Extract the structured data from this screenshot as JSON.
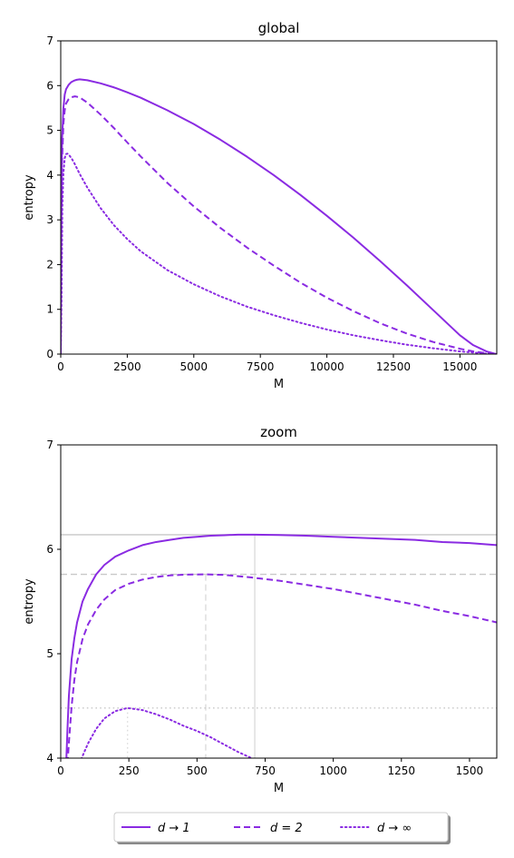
{
  "chart_data": [
    {
      "type": "line",
      "title": "global",
      "xlabel": "M",
      "ylabel": "entropy",
      "xlim": [
        0,
        16384
      ],
      "ylim": [
        0,
        7
      ],
      "xticks": [
        0,
        2500,
        5000,
        7500,
        10000,
        12500,
        15000
      ],
      "xtick_labels": [
        "0",
        "2500",
        "5000",
        "7500",
        "10000",
        "12500",
        "15000"
      ],
      "yticks": [
        0,
        1,
        2,
        3,
        4,
        5,
        6,
        7
      ],
      "ytick_labels": [
        "0",
        "1",
        "2",
        "3",
        "4",
        "5",
        "6",
        "7"
      ],
      "grid": false,
      "series": [
        {
          "name": "d → 1",
          "style": "solid",
          "color": "#8a2be2",
          "x": [
            0,
            20,
            50,
            100,
            150,
            200,
            300,
            400,
            500,
            600,
            712,
            1000,
            1500,
            2000,
            2500,
            3000,
            4000,
            5000,
            6000,
            7000,
            8000,
            9000,
            10000,
            11000,
            12000,
            13000,
            14000,
            15000,
            15500,
            16000,
            16300,
            16384
          ],
          "y": [
            0,
            3.2,
            4.8,
            5.5,
            5.8,
            5.92,
            6.02,
            6.08,
            6.11,
            6.13,
            6.14,
            6.12,
            6.05,
            5.96,
            5.85,
            5.73,
            5.45,
            5.14,
            4.79,
            4.41,
            4.0,
            3.56,
            3.09,
            2.6,
            2.08,
            1.54,
            0.98,
            0.42,
            0.2,
            0.06,
            0.01,
            0
          ]
        },
        {
          "name": "d = 2",
          "style": "dashed",
          "color": "#8a2be2",
          "x": [
            0,
            20,
            50,
            100,
            150,
            200,
            300,
            400,
            532,
            700,
            1000,
            1500,
            2000,
            2500,
            3000,
            4000,
            5000,
            6000,
            7000,
            8000,
            9000,
            10000,
            11000,
            12000,
            13000,
            14000,
            15000,
            15500,
            16000,
            16384
          ],
          "y": [
            0,
            2.8,
            4.3,
            5.15,
            5.45,
            5.6,
            5.7,
            5.74,
            5.76,
            5.74,
            5.62,
            5.35,
            5.05,
            4.73,
            4.42,
            3.83,
            3.3,
            2.82,
            2.38,
            1.98,
            1.6,
            1.26,
            0.96,
            0.69,
            0.46,
            0.27,
            0.12,
            0.06,
            0.02,
            0
          ]
        },
        {
          "name": "d → ∞",
          "style": "dotted",
          "color": "#8a2be2",
          "x": [
            0,
            30,
            60,
            100,
            150,
            200,
            250,
            300,
            400,
            500,
            700,
            1000,
            1500,
            2000,
            2500,
            3000,
            4000,
            5000,
            6000,
            7000,
            8000,
            9000,
            10000,
            11000,
            12000,
            13000,
            14000,
            15000,
            16000,
            16384
          ],
          "y": [
            0,
            1.2,
            3.3,
            4.05,
            4.38,
            4.47,
            4.48,
            4.46,
            4.38,
            4.28,
            4.04,
            3.72,
            3.26,
            2.88,
            2.57,
            2.3,
            1.88,
            1.56,
            1.29,
            1.06,
            0.87,
            0.7,
            0.55,
            0.42,
            0.31,
            0.21,
            0.13,
            0.06,
            0.01,
            0
          ]
        }
      ]
    },
    {
      "type": "line",
      "title": "zoom",
      "xlabel": "M",
      "ylabel": "entropy",
      "xlim": [
        0,
        1600
      ],
      "ylim": [
        4,
        7
      ],
      "xticks": [
        0,
        250,
        500,
        750,
        1000,
        1250,
        1500
      ],
      "xtick_labels": [
        "0",
        "250",
        "500",
        "750",
        "1000",
        "1250",
        "1500"
      ],
      "yticks": [
        4,
        5,
        6,
        7
      ],
      "ytick_labels": [
        "4",
        "5",
        "6",
        "7"
      ],
      "grid": false,
      "reference_lines": [
        {
          "series": "d → 1",
          "peak_x": 712,
          "peak_y": 6.14,
          "style": "solid"
        },
        {
          "series": "d = 2",
          "peak_x": 532,
          "peak_y": 5.76,
          "style": "dashed"
        },
        {
          "series": "d → ∞",
          "peak_x": 245,
          "peak_y": 4.48,
          "style": "dotted"
        }
      ],
      "series": [
        {
          "name": "d → 1",
          "style": "solid",
          "color": "#8a2be2",
          "x": [
            20,
            25,
            30,
            40,
            50,
            60,
            80,
            100,
            130,
            160,
            200,
            250,
            300,
            350,
            400,
            450,
            500,
            550,
            600,
            650,
            712,
            800,
            900,
            1000,
            1100,
            1200,
            1300,
            1400,
            1500,
            1600
          ],
          "y": [
            3.95,
            4.3,
            4.6,
            4.95,
            5.15,
            5.3,
            5.5,
            5.62,
            5.76,
            5.85,
            5.93,
            5.99,
            6.04,
            6.07,
            6.09,
            6.11,
            6.12,
            6.13,
            6.135,
            6.14,
            6.14,
            6.137,
            6.13,
            6.12,
            6.11,
            6.1,
            6.09,
            6.07,
            6.06,
            6.04
          ]
        },
        {
          "name": "d = 2",
          "style": "dashed",
          "color": "#8a2be2",
          "x": [
            25,
            30,
            40,
            50,
            60,
            80,
            100,
            130,
            160,
            200,
            250,
            300,
            350,
            400,
            450,
            532,
            600,
            700,
            800,
            900,
            1000,
            1100,
            1200,
            1300,
            1400,
            1500,
            1600
          ],
          "y": [
            3.95,
            4.15,
            4.5,
            4.75,
            4.92,
            5.14,
            5.28,
            5.42,
            5.52,
            5.61,
            5.67,
            5.71,
            5.735,
            5.75,
            5.757,
            5.76,
            5.755,
            5.73,
            5.7,
            5.66,
            5.62,
            5.57,
            5.52,
            5.47,
            5.41,
            5.36,
            5.3
          ]
        },
        {
          "name": "d → ∞",
          "style": "dotted",
          "color": "#8a2be2",
          "x": [
            70,
            80,
            100,
            130,
            160,
            200,
            245,
            300,
            350,
            400,
            450,
            500,
            550,
            600,
            650,
            700
          ],
          "y": [
            3.95,
            4.02,
            4.14,
            4.28,
            4.38,
            4.45,
            4.48,
            4.46,
            4.42,
            4.37,
            4.31,
            4.26,
            4.2,
            4.13,
            4.06,
            4.0
          ]
        }
      ]
    }
  ],
  "legend": {
    "placement": "bottom-center",
    "entries": [
      {
        "label": "d → 1",
        "style": "solid"
      },
      {
        "label": "d = 2",
        "style": "dashed"
      },
      {
        "label": "d → ∞",
        "style": "dotted"
      }
    ]
  },
  "colors": {
    "series": "#8a2be2",
    "reference": "#c8c8c8"
  }
}
